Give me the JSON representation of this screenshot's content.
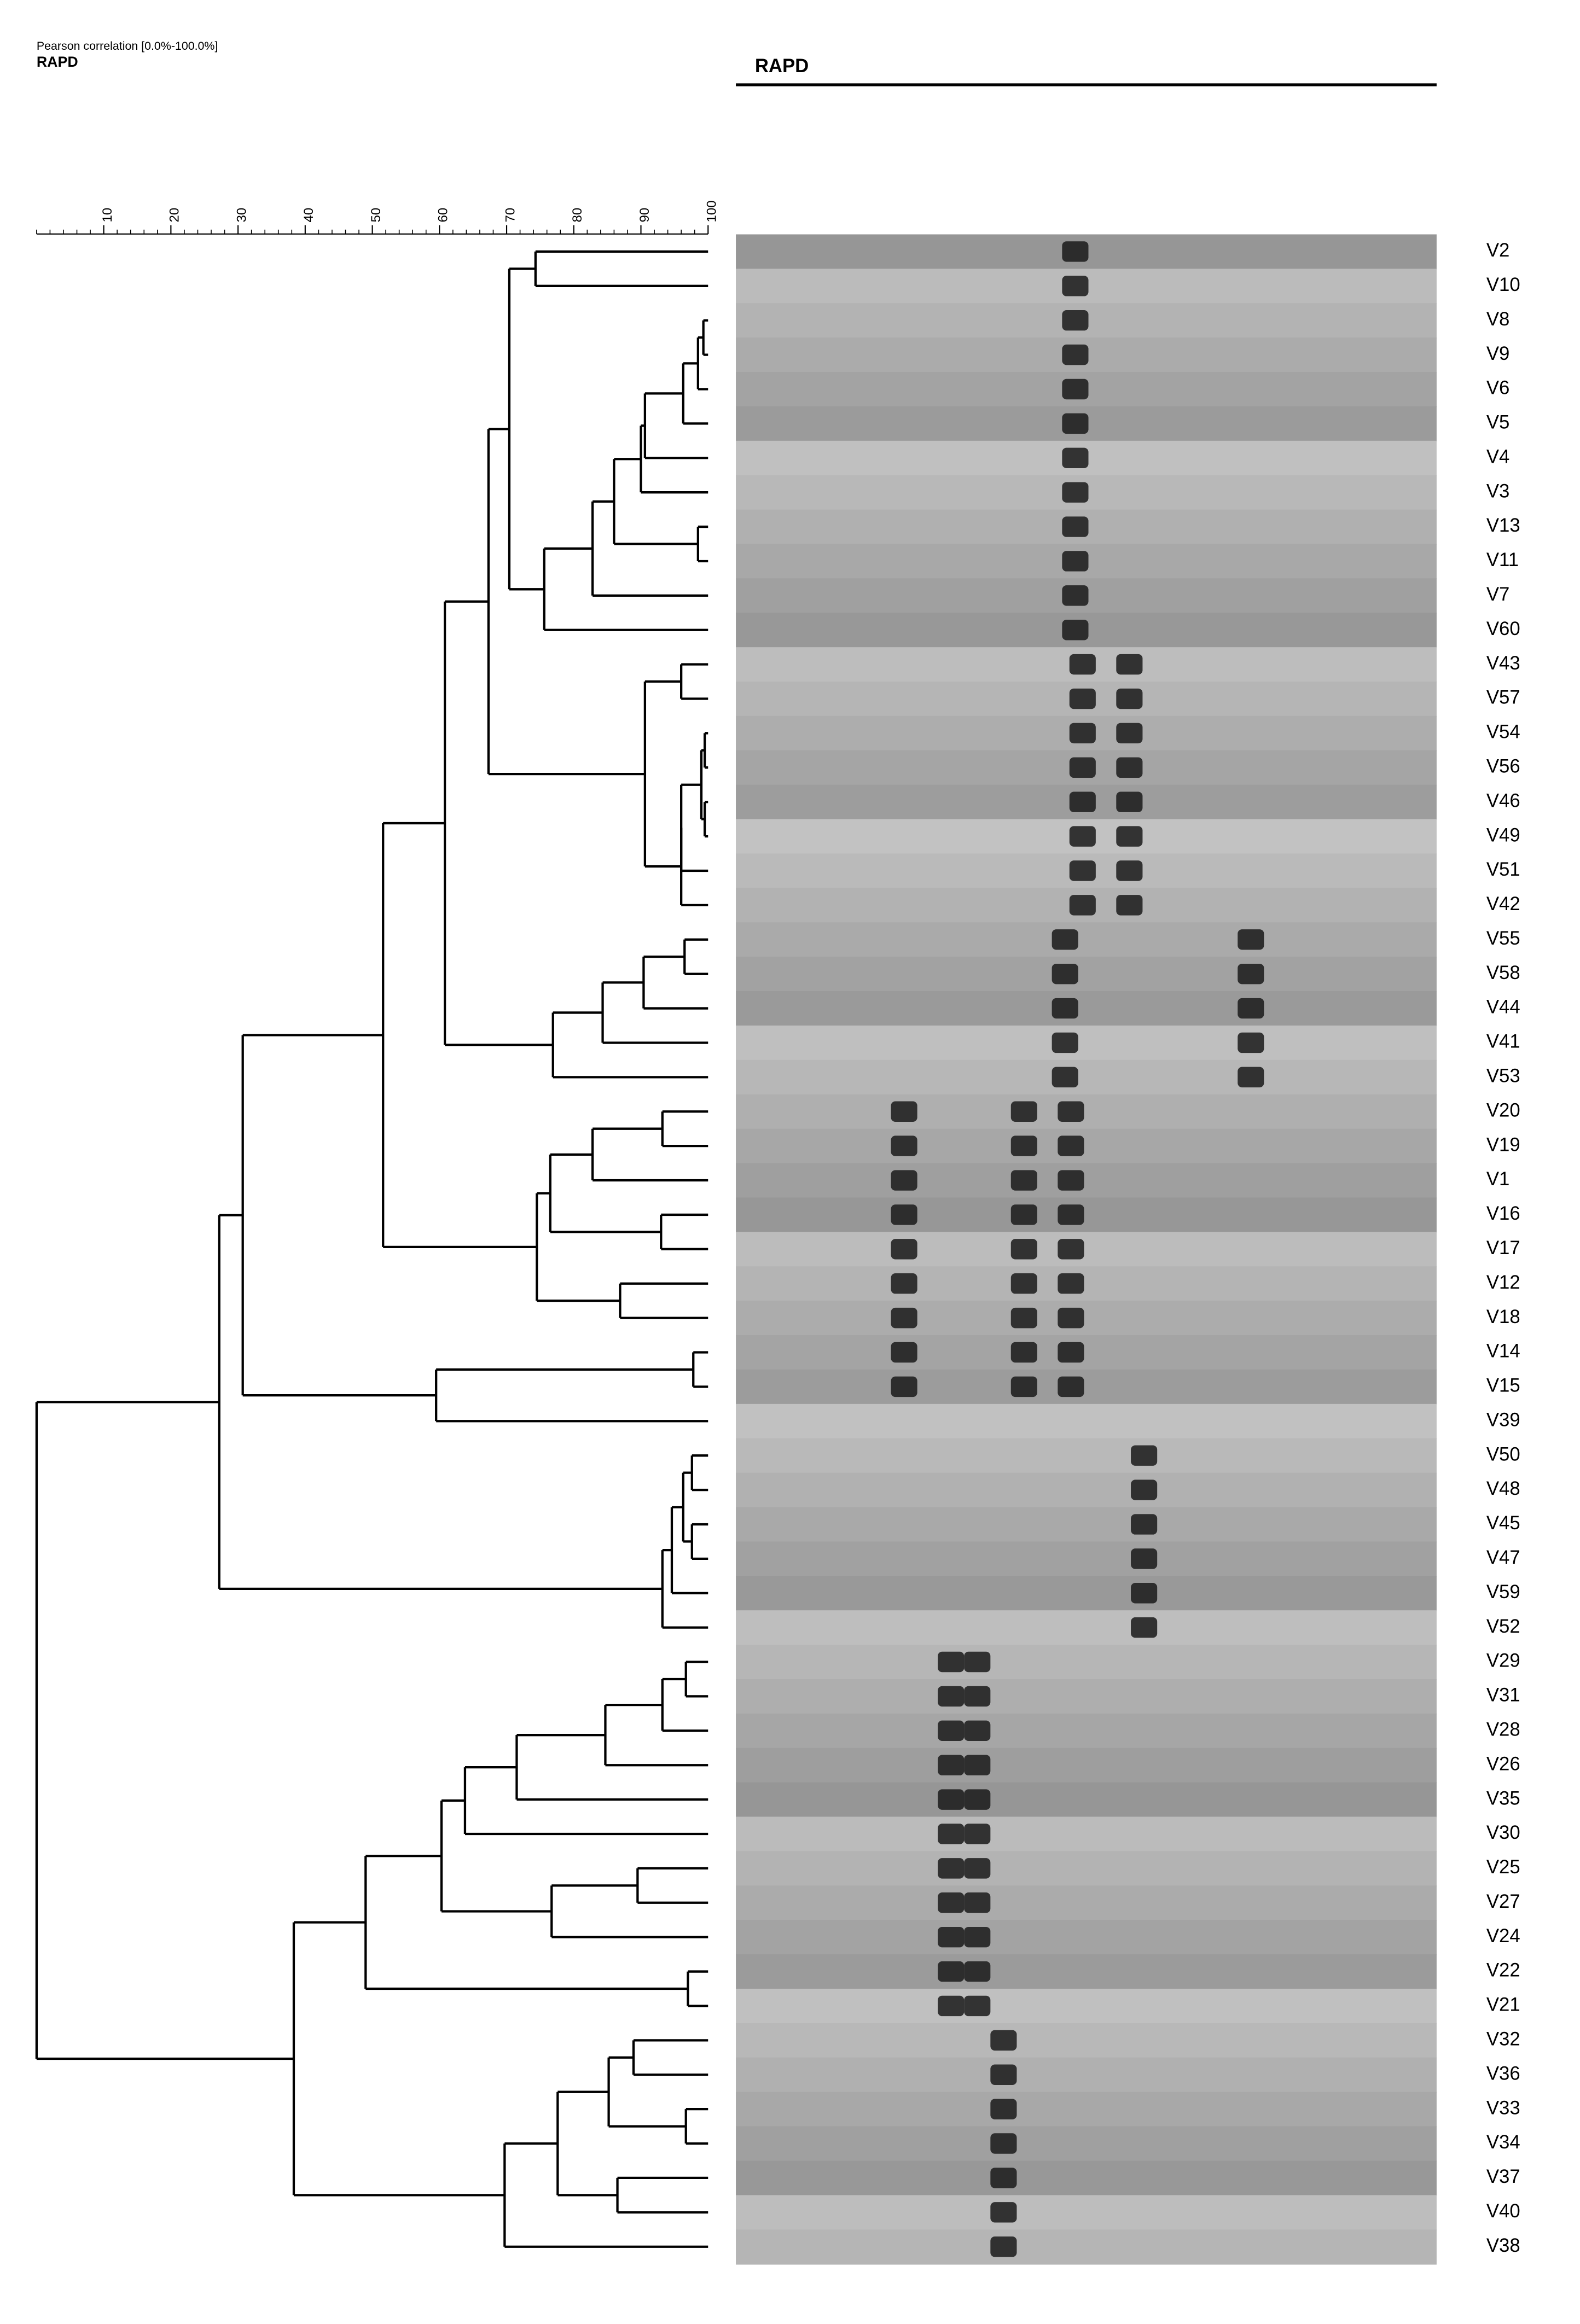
{
  "chart_data": {
    "type": "dendrogram",
    "axis_title": "Pearson correlation [0.0%-100.0%]",
    "subtitle": "RAPD",
    "gel_title": "RAPD",
    "xlim": [
      0,
      100
    ],
    "xticks": [
      10,
      20,
      30,
      40,
      50,
      60,
      70,
      80,
      90,
      100
    ],
    "color": "#000000",
    "tree": {
      "similarity": 0,
      "children": [
        {
          "similarity": 27.2,
          "children": [
            {
              "similarity": 30.7,
              "children": [
                {
                  "similarity": 51.6,
                  "children": [
                    {
                      "similarity": 60.8,
                      "children": [
                        {
                          "similarity": 67.3,
                          "children": [
                            {
                              "similarity": 70.4,
                              "children": [
                                {
                                  "similarity": 74.3,
                                  "children": [
                                    {
                                      "label": "V2"
                                    },
                                    {
                                      "label": "V10"
                                    }
                                  ]
                                },
                                {
                                  "similarity": 75.6,
                                  "children": [
                                    {
                                      "similarity": 82.8,
                                      "children": [
                                        {
                                          "similarity": 86,
                                          "children": [
                                            {
                                              "similarity": 90,
                                              "children": [
                                                {
                                                  "similarity": 90.6,
                                                  "children": [
                                                    {
                                                      "similarity": 96.3,
                                                      "children": [
                                                        {
                                                          "similarity": 98.5,
                                                          "children": [
                                                            {
                                                              "similarity": 99.3,
                                                              "children": [
                                                                {
                                                                  "label": "V8"
                                                                },
                                                                {
                                                                  "label": "V9"
                                                                }
                                                              ]
                                                            },
                                                            {
                                                              "label": "V6"
                                                            }
                                                          ]
                                                        },
                                                        {
                                                          "label": "V5"
                                                        }
                                                      ]
                                                    },
                                                    {
                                                      "label": "V4"
                                                    }
                                                  ]
                                                },
                                                {
                                                  "label": "V3"
                                                }
                                              ]
                                            },
                                            {
                                              "similarity": 98.5,
                                              "children": [
                                                {
                                                  "label": "V13"
                                                },
                                                {
                                                  "label": "V11"
                                                }
                                              ]
                                            }
                                          ]
                                        },
                                        {
                                          "label": "V7"
                                        }
                                      ]
                                    },
                                    {
                                      "label": "V60"
                                    }
                                  ]
                                }
                              ]
                            },
                            {
                              "similarity": 90.6,
                              "children": [
                                {
                                  "similarity": 96,
                                  "children": [
                                    {
                                      "label": "V43"
                                    },
                                    {
                                      "label": "V57"
                                    }
                                  ]
                                },
                                {
                                  "similarity": 96,
                                  "children": [
                                    {
                                      "similarity": 96,
                                      "children": [
                                        {
                                          "similarity": 99,
                                          "children": [
                                            {
                                              "similarity": 99.5,
                                              "children": [
                                                {
                                                  "label": "V54"
                                                },
                                                {
                                                  "label": "V56"
                                                }
                                              ]
                                            },
                                            {
                                              "similarity": 99.5,
                                              "children": [
                                                {
                                                  "label": "V46"
                                                },
                                                {
                                                  "label": "V49"
                                                }
                                              ]
                                            }
                                          ]
                                        },
                                        {
                                          "label": "V51"
                                        }
                                      ]
                                    },
                                    {
                                      "label": "V42"
                                    }
                                  ]
                                }
                              ]
                            }
                          ]
                        },
                        {
                          "similarity": 76.9,
                          "children": [
                            {
                              "similarity": 84.3,
                              "children": [
                                {
                                  "similarity": 90.4,
                                  "children": [
                                    {
                                      "similarity": 96.5,
                                      "children": [
                                        {
                                          "label": "V55"
                                        },
                                        {
                                          "label": "V58"
                                        }
                                      ]
                                    },
                                    {
                                      "label": "V44"
                                    }
                                  ]
                                },
                                {
                                  "label": "V41"
                                }
                              ]
                            },
                            {
                              "label": "V53"
                            }
                          ]
                        }
                      ]
                    },
                    {
                      "similarity": 74.5,
                      "children": [
                        {
                          "similarity": 76.5,
                          "children": [
                            {
                              "similarity": 82.8,
                              "children": [
                                {
                                  "similarity": 93.2,
                                  "children": [
                                    {
                                      "label": "V20"
                                    },
                                    {
                                      "label": "V19"
                                    }
                                  ]
                                },
                                {
                                  "label": "V1"
                                }
                              ]
                            },
                            {
                              "similarity": 93,
                              "children": [
                                {
                                  "label": "V16"
                                },
                                {
                                  "label": "V17"
                                }
                              ]
                            }
                          ]
                        },
                        {
                          "similarity": 86.9,
                          "children": [
                            {
                              "label": "V12"
                            },
                            {
                              "label": "V18"
                            }
                          ]
                        }
                      ]
                    }
                  ]
                },
                {
                  "similarity": 59.5,
                  "children": [
                    {
                      "similarity": 97.8,
                      "children": [
                        {
                          "label": "V14"
                        },
                        {
                          "label": "V15"
                        }
                      ]
                    },
                    {
                      "label": "V39"
                    }
                  ]
                }
              ]
            },
            {
              "similarity": 93.2,
              "children": [
                {
                  "similarity": 94.6,
                  "children": [
                    {
                      "similarity": 96.3,
                      "children": [
                        {
                          "similarity": 97.6,
                          "children": [
                            {
                              "label": "V50"
                            },
                            {
                              "label": "V48"
                            }
                          ]
                        },
                        {
                          "similarity": 97.6,
                          "children": [
                            {
                              "label": "V45"
                            },
                            {
                              "label": "V47"
                            }
                          ]
                        }
                      ]
                    },
                    {
                      "label": "V59"
                    }
                  ]
                },
                {
                  "label": "V52"
                }
              ]
            }
          ]
        },
        {
          "similarity": 38.3,
          "children": [
            {
              "similarity": 49,
              "children": [
                {
                  "similarity": 60.3,
                  "children": [
                    {
                      "similarity": 63.8,
                      "children": [
                        {
                          "similarity": 71.5,
                          "children": [
                            {
                              "similarity": 84.7,
                              "children": [
                                {
                                  "similarity": 93.2,
                                  "children": [
                                    {
                                      "similarity": 96.7,
                                      "children": [
                                        {
                                          "label": "V29"
                                        },
                                        {
                                          "label": "V31"
                                        }
                                      ]
                                    },
                                    {
                                      "label": "V28"
                                    }
                                  ]
                                },
                                {
                                  "label": "V26"
                                }
                              ]
                            },
                            {
                              "label": "V35"
                            }
                          ]
                        },
                        {
                          "label": "V30"
                        }
                      ]
                    },
                    {
                      "similarity": 76.7,
                      "children": [
                        {
                          "similarity": 89.5,
                          "children": [
                            {
                              "label": "V25"
                            },
                            {
                              "label": "V27"
                            }
                          ]
                        },
                        {
                          "label": "V24"
                        }
                      ]
                    }
                  ]
                },
                {
                  "similarity": 97,
                  "children": [
                    {
                      "label": "V22"
                    },
                    {
                      "label": "V21"
                    }
                  ]
                }
              ]
            },
            {
              "similarity": 69.7,
              "children": [
                {
                  "similarity": 77.6,
                  "children": [
                    {
                      "similarity": 85.2,
                      "children": [
                        {
                          "similarity": 88.9,
                          "children": [
                            {
                              "label": "V32"
                            },
                            {
                              "label": "V36"
                            }
                          ]
                        },
                        {
                          "similarity": 96.7,
                          "children": [
                            {
                              "label": "V33"
                            },
                            {
                              "label": "V34"
                            }
                          ]
                        }
                      ]
                    },
                    {
                      "similarity": 86.5,
                      "children": [
                        {
                          "label": "V37"
                        },
                        {
                          "label": "V40"
                        }
                      ]
                    }
                  ]
                },
                {
                  "label": "V38"
                }
              ]
            }
          ]
        }
      ]
    }
  }
}
